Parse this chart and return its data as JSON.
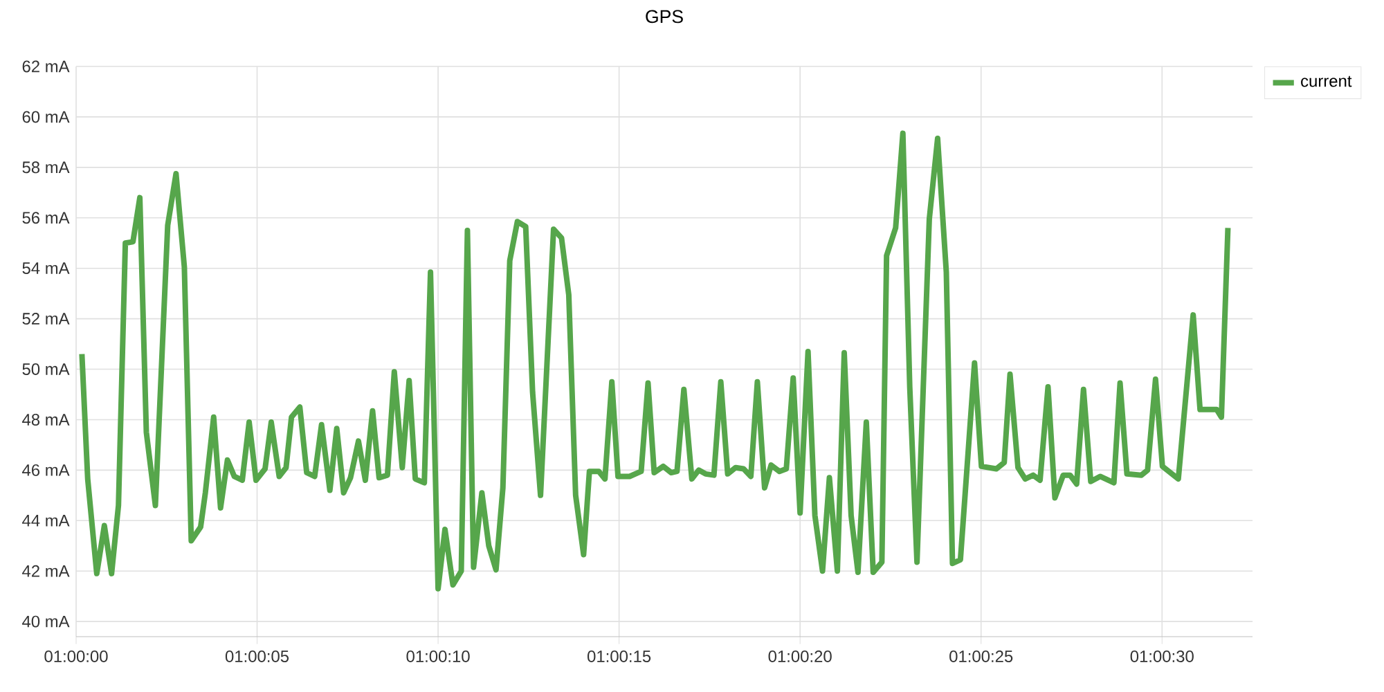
{
  "chart_data": {
    "type": "line",
    "title": "GPS",
    "x": [
      1.00004444,
      1.00008889,
      1.00015833,
      1.00021667,
      1.00027222,
      1.000325,
      1.00037778,
      1.00043611,
      1.00048889,
      1.00053889,
      1.00060833,
      1.00070278,
      1.00076667,
      1.00083056,
      1.00088333,
      1.00095556,
      1.00099167,
      1.00105556,
      1.00110833,
      1.00116111,
      1.00121389,
      1.001275,
      1.00132778,
      1.00138056,
      1.00145,
      1.00149722,
      1.00155833,
      1.00161111,
      1.00165278,
      1.00171667,
      1.00176944,
      1.00183056,
      1.00188333,
      1.00194722,
      1.002,
      1.00205278,
      1.00210556,
      1.00216667,
      1.00221944,
      1.002275,
      1.002325,
      1.00238889,
      1.00244167,
      1.00250278,
      1.00255556,
      1.00260278,
      1.00267222,
      1.00271944,
      1.00277778,
      1.00283056,
      1.00289167,
      1.00295556,
      1.00300278,
      1.00305,
      1.00311389,
      1.00316667,
      1.00322222,
      1.003275,
      1.00332778,
      1.00338611,
      1.00345,
      1.00350278,
      1.00356389,
      1.00366389,
      1.003725,
      1.00378056,
      1.00383333,
      1.00389444,
      1.00393889,
      1.00401111,
      1.00405833,
      1.00411111,
      1.00415833,
      1.00424722,
      1.00433611,
      1.00438889,
      1.00443611,
      1.00450556,
      1.00456667,
      1.00461111,
      1.00466389,
      1.004725,
      1.00477778,
      1.00483056,
      1.00489444,
      1.00494722,
      1.005,
      1.00506111,
      1.00512222,
      1.00517778,
      1.00522778,
      1.00528333,
      1.00533333,
      1.00539722,
      1.00545,
      1.00550278,
      1.00555556,
      1.00561667,
      1.00566944,
      1.00572778,
      1.00578056,
      1.00584167,
      1.00589444,
      1.00594722,
      1.006,
      1.00606389,
      1.00611667,
      1.00618333,
      1.00621944,
      1.00628889,
      1.00634444,
      1.00639722,
      1.00645278,
      1.00654722,
      1.00661111,
      1.00667778,
      1.006725,
      1.00678611,
      1.00689444,
      1.00694722,
      1.00706111,
      1.00712222,
      1.00716667,
      1.00722778,
      1.00728333,
      1.00734444,
      1.00739722,
      1.00745833,
      1.00751111,
      1.007575,
      1.00762778,
      1.00767778,
      1.00773056,
      1.00778611,
      1.00785833,
      1.00796389,
      1.00801111,
      1.00806389,
      1.008175,
      1.00822222,
      1.00828333,
      1.00833611,
      1.00845833,
      1.00857222,
      1.008625,
      1.00875278,
      1.00878889,
      1.00883889
    ],
    "series": [
      {
        "name": "current",
        "color": "#56a64b",
        "values": [
          50.6,
          45.65,
          41.9,
          43.8,
          41.9,
          44.6,
          55.0,
          55.05,
          56.8,
          47.5,
          44.6,
          55.7,
          57.75,
          54.05,
          43.2,
          43.75,
          45.1,
          48.1,
          44.5,
          46.4,
          45.75,
          45.6,
          47.9,
          45.6,
          46.05,
          47.9,
          45.75,
          46.1,
          48.1,
          48.5,
          45.9,
          45.75,
          47.8,
          45.2,
          47.65,
          45.1,
          45.7,
          47.15,
          45.6,
          48.35,
          45.7,
          45.8,
          49.9,
          46.1,
          49.55,
          45.65,
          45.5,
          53.85,
          41.3,
          43.65,
          41.45,
          42.0,
          55.5,
          42.15,
          45.1,
          43.0,
          42.05,
          45.3,
          54.3,
          55.85,
          55.65,
          49.1,
          45.0,
          55.55,
          55.2,
          52.95,
          45.0,
          42.65,
          45.95,
          45.95,
          45.65,
          49.5,
          45.75,
          45.75,
          45.95,
          49.45,
          45.9,
          46.15,
          45.9,
          45.95,
          49.2,
          45.65,
          46.0,
          45.85,
          45.8,
          49.5,
          45.85,
          46.1,
          46.05,
          45.75,
          49.5,
          45.3,
          46.2,
          45.95,
          46.05,
          49.65,
          44.3,
          50.7,
          44.2,
          42.0,
          45.7,
          42.0,
          50.65,
          44.2,
          41.95,
          47.9,
          41.95,
          42.35,
          54.5,
          55.6,
          59.35,
          49.3,
          42.35,
          55.95,
          59.15,
          53.85,
          42.3,
          42.45,
          50.25,
          46.15,
          46.05,
          46.3,
          49.8,
          46.1,
          45.65,
          45.8,
          45.6,
          49.3,
          44.9,
          45.8,
          45.8,
          45.45,
          49.2,
          45.55,
          45.75,
          45.5,
          49.45,
          45.85,
          45.8,
          46.0,
          49.6,
          46.15,
          45.65,
          52.15,
          48.4,
          48.4,
          48.1,
          55.6
        ]
      }
    ],
    "xlim": [
      1.0,
      1.00902778
    ],
    "ylim": [
      39.4,
      62
    ],
    "xticks": [
      {
        "value": 1.0,
        "label": "01:00:00"
      },
      {
        "value": 1.00138889,
        "label": "01:00:05"
      },
      {
        "value": 1.00277778,
        "label": "01:00:10"
      },
      {
        "value": 1.00416667,
        "label": "01:00:15"
      },
      {
        "value": 1.00555556,
        "label": "01:00:20"
      },
      {
        "value": 1.00694444,
        "label": "01:00:25"
      },
      {
        "value": 1.00833333,
        "label": "01:00:30"
      }
    ],
    "yticks": [
      {
        "value": 40,
        "label": "40 mA"
      },
      {
        "value": 42,
        "label": "42 mA"
      },
      {
        "value": 44,
        "label": "44 mA"
      },
      {
        "value": 46,
        "label": "46 mA"
      },
      {
        "value": 48,
        "label": "48 mA"
      },
      {
        "value": 50,
        "label": "50 mA"
      },
      {
        "value": 52,
        "label": "52 mA"
      },
      {
        "value": 54,
        "label": "54 mA"
      },
      {
        "value": 56,
        "label": "56 mA"
      },
      {
        "value": 58,
        "label": "58 mA"
      },
      {
        "value": 60,
        "label": "60 mA"
      },
      {
        "value": 62,
        "label": "62 mA"
      }
    ],
    "grid": true,
    "legend": "top right",
    "marker": "none",
    "line_style": "solid"
  }
}
